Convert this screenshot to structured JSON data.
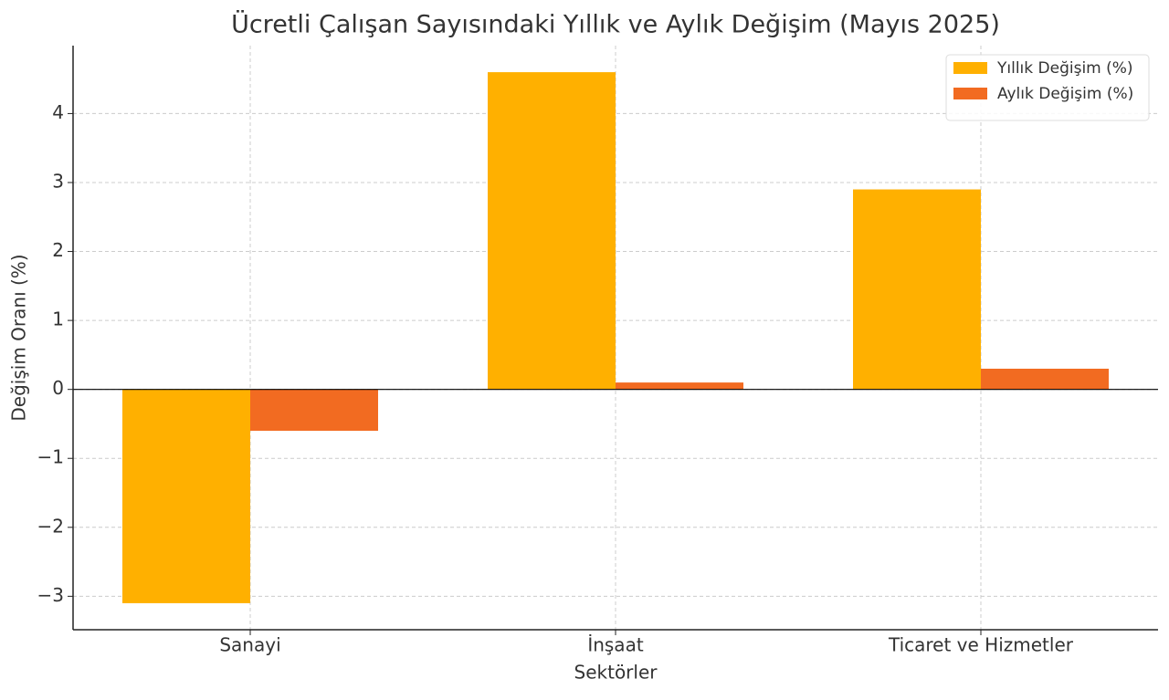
{
  "chart_data": {
    "type": "bar",
    "title": "Ücretli Çalışan Sayısındaki Yıllık ve Aylık Değişim (Mayıs 2025)",
    "x_label": "Sektörler",
    "y_label": "Değişim Oranı (%)",
    "categories": [
      "Sanayi",
      "İnşaat",
      "Ticaret ve Hizmetler"
    ],
    "series": [
      {
        "name": "Yıllık Değişim (%)",
        "color": "#ffb000",
        "values": [
          -3.1,
          4.6,
          2.9
        ]
      },
      {
        "name": "Aylık Değişim (%)",
        "color": "#f26b21",
        "values": [
          -0.6,
          0.1,
          0.3
        ]
      }
    ],
    "ylim": [
      -3.485,
      4.985
    ],
    "yticks": [
      {
        "value": -3,
        "label": "−3"
      },
      {
        "value": -2,
        "label": "−2"
      },
      {
        "value": -1,
        "label": "−1"
      },
      0,
      1,
      2,
      3,
      4
    ],
    "grid": true,
    "legend": "upper right"
  }
}
